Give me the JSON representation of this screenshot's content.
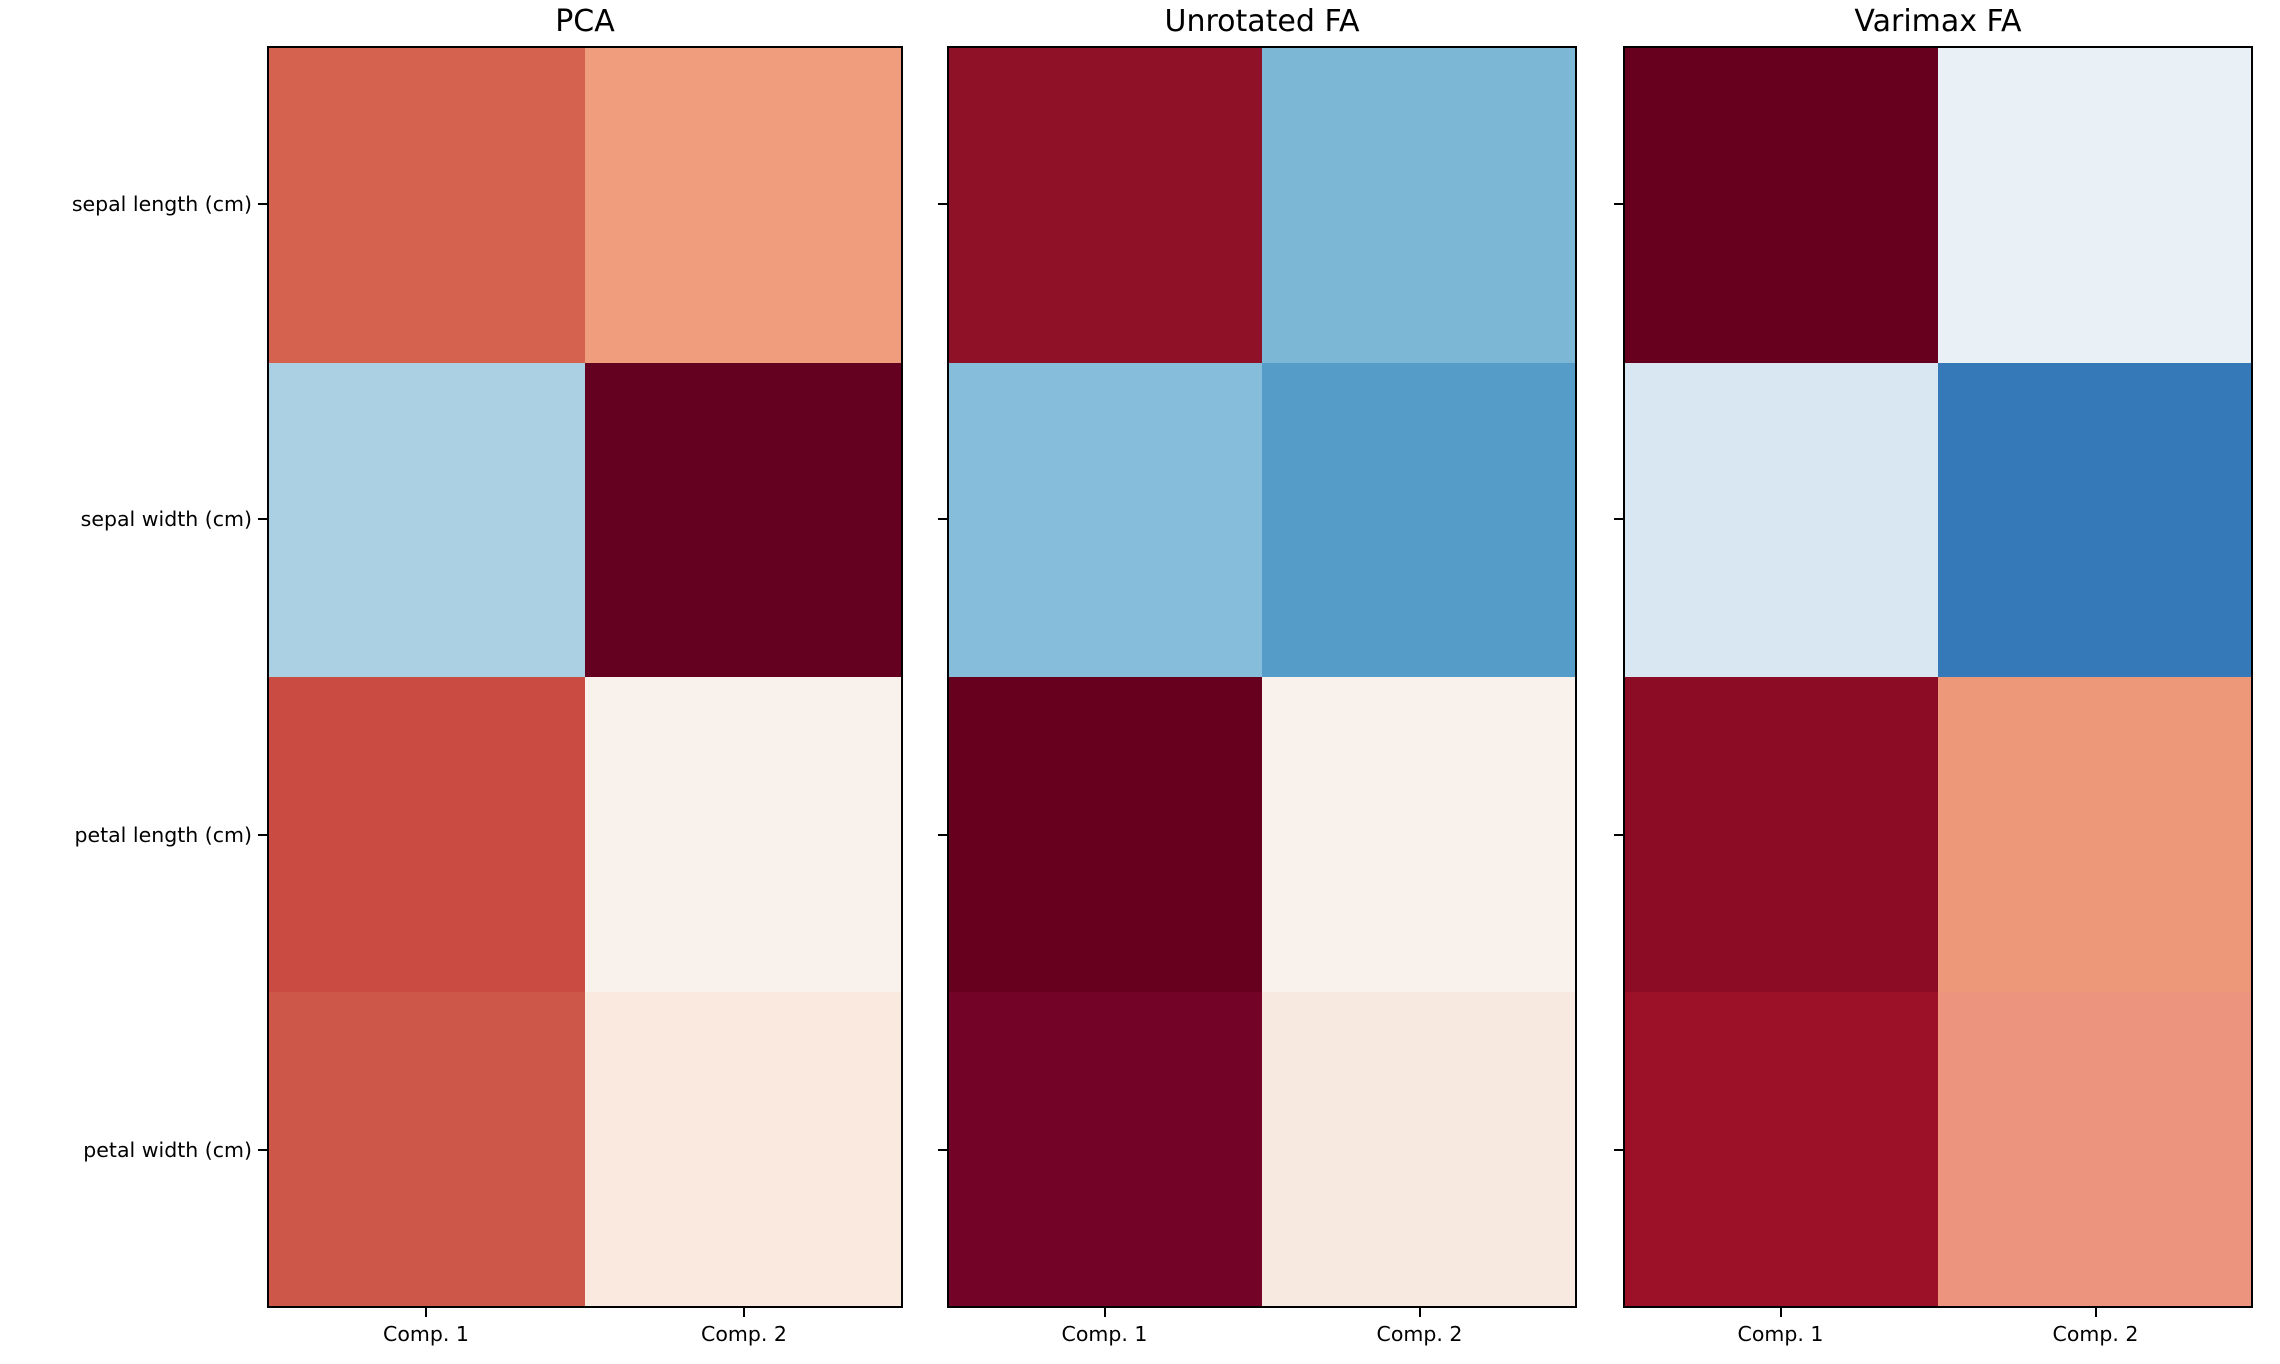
{
  "chart_data": {
    "type": "heatmap",
    "row_labels": [
      "sepal length (cm)",
      "sepal width (cm)",
      "petal length (cm)",
      "petal width (cm)"
    ],
    "col_labels": [
      "Comp. 1",
      "Comp. 2"
    ],
    "value_range": [
      -1,
      1
    ],
    "colormap": "RdBu_r",
    "grid": false,
    "axis_color": "#000000",
    "background": "#ffffff",
    "values_note": "cell values estimated from colormap shading; colors sampled from pixels",
    "panels": [
      {
        "title": "PCA",
        "values": [
          [
            0.52,
            0.38
          ],
          [
            -0.26,
            0.92
          ],
          [
            0.58,
            0.02
          ],
          [
            0.56,
            0.07
          ]
        ],
        "cell_colors": [
          [
            "#d5624f",
            "#ef9d7d"
          ],
          [
            "#abd0e4",
            "#640020"
          ],
          [
            "#c94b41",
            "#f8f1ec"
          ],
          [
            "#cd584a",
            "#f9e9df"
          ]
        ]
      },
      {
        "title": "Unrotated FA",
        "values": [
          [
            0.74,
            -0.37
          ],
          [
            -0.33,
            -0.5
          ],
          [
            0.99,
            0.02
          ],
          [
            0.94,
            0.06
          ]
        ],
        "cell_colors": [
          [
            "#8e1127",
            "#7cb7d6"
          ],
          [
            "#85bddb",
            "#559cc8"
          ],
          [
            "#67001f",
            "#f8f1ec"
          ],
          [
            "#740328",
            "#f8e9e0"
          ]
        ]
      },
      {
        "title": "Varimax FA",
        "values": [
          [
            0.96,
            -0.06
          ],
          [
            -0.12,
            -0.64
          ],
          [
            0.84,
            0.4
          ],
          [
            0.8,
            0.4
          ]
        ],
        "cell_colors": [
          [
            "#67001f",
            "#eaf1f6"
          ],
          [
            "#d8e7f1",
            "#3579b8"
          ],
          [
            "#8c0c25",
            "#ec9879"
          ],
          [
            "#9c1127",
            "#ec947d"
          ]
        ]
      }
    ]
  }
}
